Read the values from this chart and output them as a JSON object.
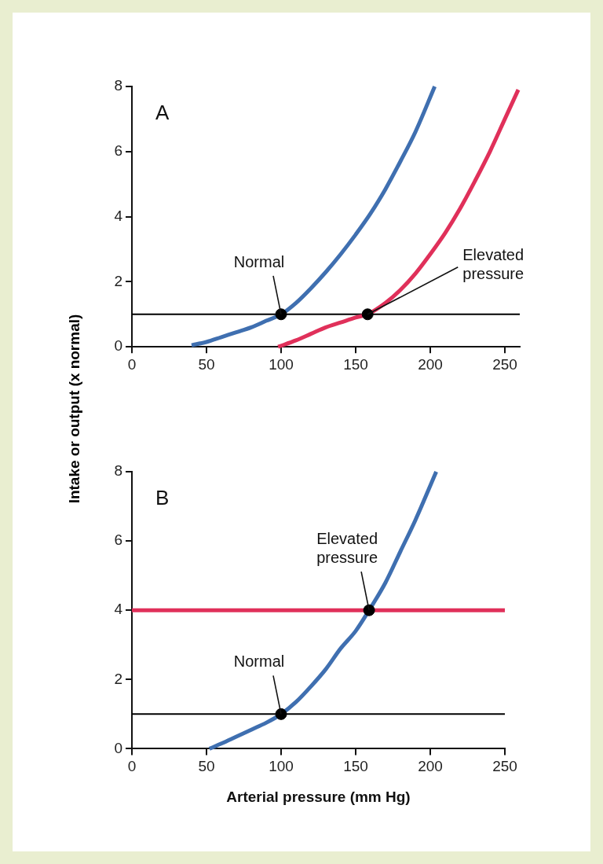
{
  "chart_data": [
    {
      "type": "line",
      "ylabel": "Intake or output (x normal)",
      "xlim": [
        0,
        260
      ],
      "xticks": [
        0,
        50,
        100,
        150,
        200,
        250
      ],
      "ylim": [
        0,
        8
      ],
      "yticks": [
        0,
        2,
        4,
        6,
        8
      ],
      "grid": false,
      "legend": false,
      "line_style": "solid",
      "series": [
        {
          "type": "line",
          "color": "#3f6fb0",
          "x": [
            40,
            50,
            60,
            70,
            80,
            90,
            100,
            110,
            120,
            130,
            140,
            150,
            160,
            170,
            180,
            190,
            203
          ],
          "values": [
            0.05,
            0.15,
            0.3,
            0.45,
            0.6,
            0.8,
            1,
            1.35,
            1.8,
            2.3,
            2.85,
            3.45,
            4.1,
            4.85,
            5.7,
            6.6,
            8
          ]
        },
        {
          "type": "line",
          "color": "#e0305a",
          "x": [
            98,
            110,
            120,
            130,
            140,
            150,
            158,
            170,
            180,
            190,
            200,
            210,
            220,
            230,
            240,
            250,
            259
          ],
          "values": [
            0,
            0.2,
            0.4,
            0.6,
            0.75,
            0.9,
            1,
            1.35,
            1.75,
            2.25,
            2.85,
            3.5,
            4.25,
            5.1,
            6,
            7,
            7.9
          ]
        },
        {
          "type": "scatter",
          "marker": "circle",
          "color": "#000000",
          "x": [
            100,
            158
          ],
          "values": [
            1,
            1
          ]
        }
      ],
      "ref_lines": [
        {
          "axis": "y",
          "value": 1,
          "color": "#000000"
        }
      ],
      "annotations": [
        "A",
        {
          "text": "Normal",
          "x": 100,
          "y": 1
        },
        {
          "text": "Elevated pressure",
          "x": 158,
          "y": 1
        }
      ]
    },
    {
      "type": "line",
      "xlabel": "Arterial pressure (mm Hg)",
      "xlim": [
        0,
        250
      ],
      "xticks": [
        0,
        50,
        100,
        150,
        200,
        250
      ],
      "ylim": [
        0,
        8
      ],
      "yticks": [
        0,
        2,
        4,
        6,
        8
      ],
      "grid": false,
      "legend": false,
      "line_style": "solid",
      "series": [
        {
          "type": "line",
          "color": "#3f6fb0",
          "x": [
            52,
            60,
            70,
            80,
            90,
            100,
            110,
            120,
            130,
            140,
            150,
            159,
            170,
            180,
            190,
            204
          ],
          "values": [
            0,
            0.15,
            0.35,
            0.55,
            0.75,
            1,
            1.35,
            1.8,
            2.3,
            2.9,
            3.4,
            4,
            4.8,
            5.7,
            6.6,
            8
          ]
        },
        {
          "type": "line",
          "color": "#e0305a",
          "x": [
            0,
            250
          ],
          "values": [
            4,
            4
          ]
        },
        {
          "type": "scatter",
          "marker": "circle",
          "color": "#000000",
          "x": [
            100,
            159
          ],
          "values": [
            1,
            4
          ]
        }
      ],
      "ref_lines": [
        {
          "axis": "y",
          "value": 1,
          "color": "#000000"
        }
      ],
      "annotations": [
        "B",
        {
          "text": "Normal",
          "x": 100,
          "y": 1
        },
        {
          "text": "Elevated pressure",
          "x": 159,
          "y": 4
        }
      ]
    }
  ]
}
